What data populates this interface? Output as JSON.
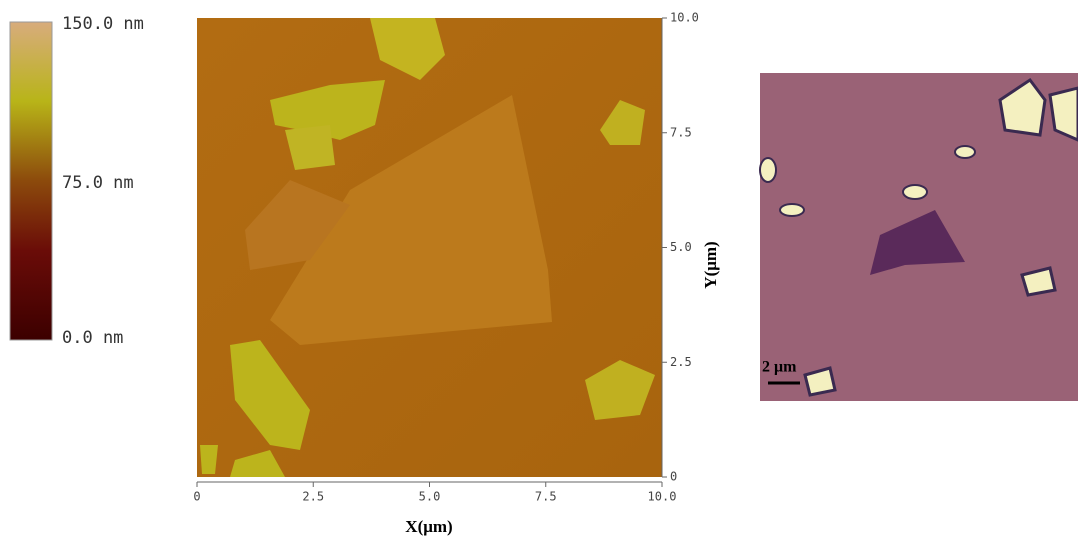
{
  "colorbar": {
    "labels": [
      "150.0 nm",
      "75.0 nm",
      "0.0 nm"
    ]
  },
  "afm": {
    "xticks": [
      "0",
      "2.5",
      "5.0",
      "7.5",
      "10.0"
    ],
    "yticks": [
      "0",
      "2.5",
      "5.0",
      "7.5",
      "10.0"
    ],
    "xlabel": "X(μm)",
    "ylabel": "Y(μm)"
  },
  "optical": {
    "scale_label": "2 μm"
  }
}
